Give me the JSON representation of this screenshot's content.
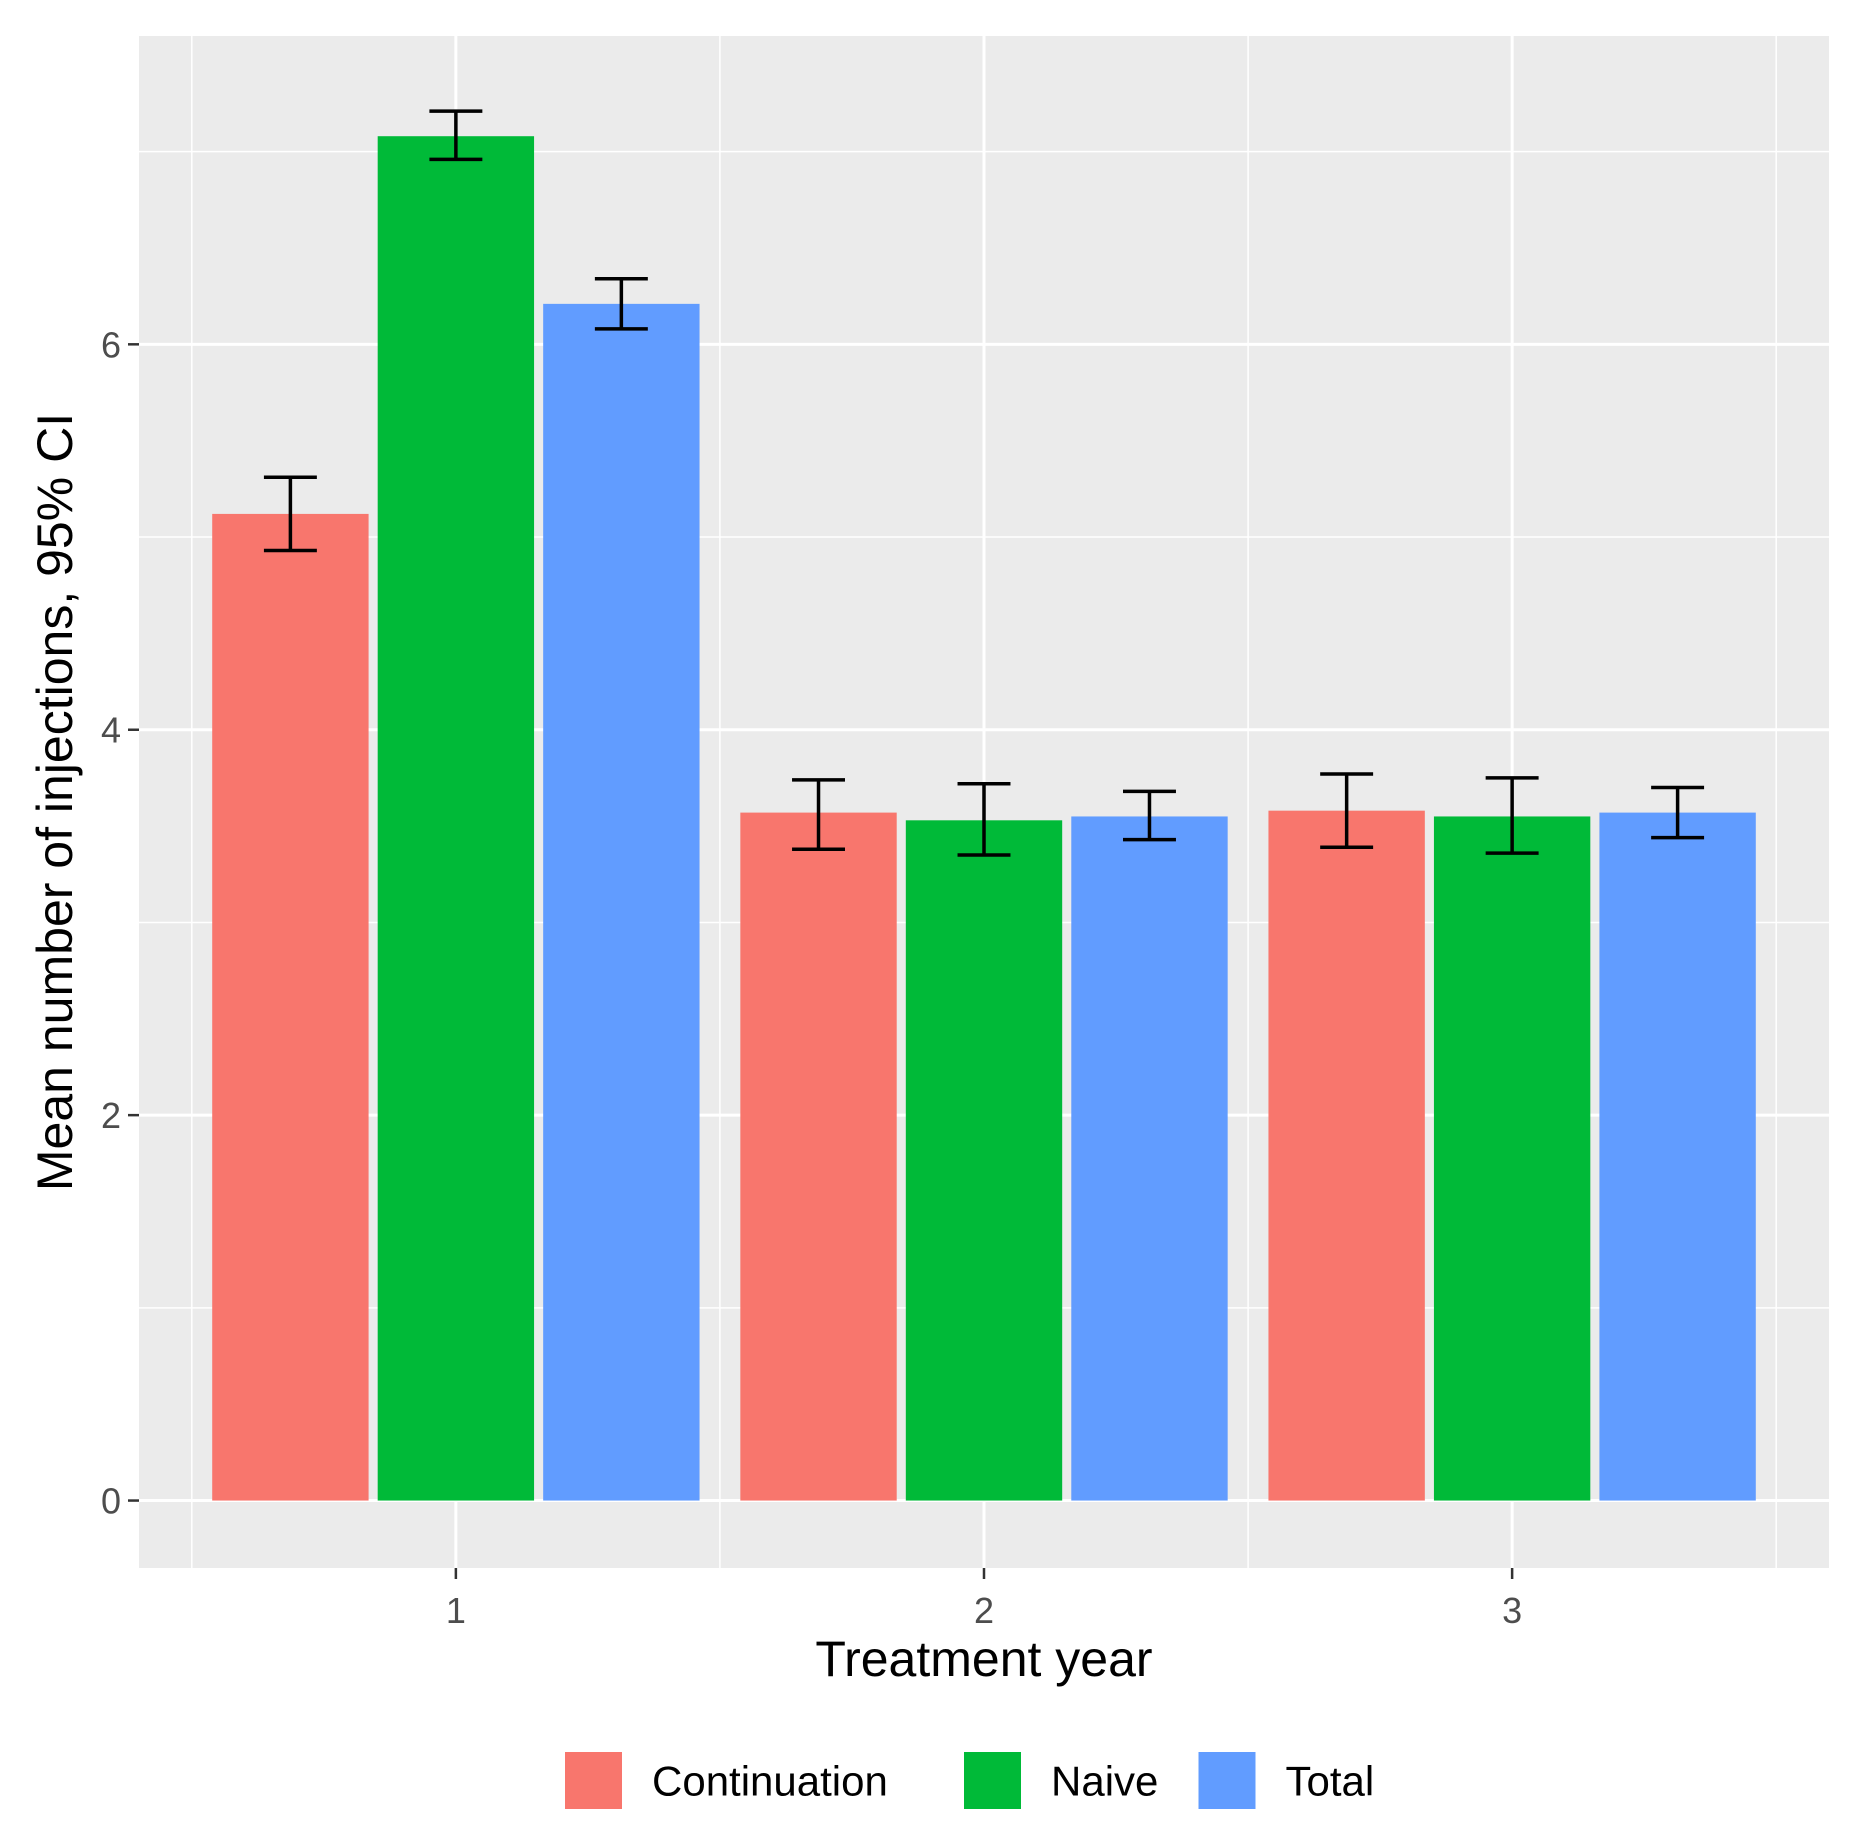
{
  "chart_data": {
    "type": "bar",
    "title": "",
    "xlabel": "Treatment year",
    "ylabel": "Mean number of injections, 95% CI",
    "categories": [
      "1",
      "2",
      "3"
    ],
    "ylim": [
      -0.35,
      7.6
    ],
    "yticks": [
      0,
      2,
      4,
      6
    ],
    "ytick_labels": [
      "0",
      "2",
      "4",
      "6"
    ],
    "grid": true,
    "legend_position": "bottom",
    "series": [
      {
        "name": "Continuation",
        "color": "#F8766D",
        "values": [
          5.12,
          3.57,
          3.58
        ],
        "ci_low": [
          4.93,
          3.38,
          3.39
        ],
        "ci_high": [
          5.31,
          3.74,
          3.77
        ]
      },
      {
        "name": "Naive",
        "color": "#00BA38",
        "values": [
          7.08,
          3.53,
          3.55
        ],
        "ci_low": [
          6.96,
          3.35,
          3.36
        ],
        "ci_high": [
          7.21,
          3.72,
          3.75
        ]
      },
      {
        "name": "Total",
        "color": "#619CFF",
        "values": [
          6.21,
          3.55,
          3.57
        ],
        "ci_low": [
          6.08,
          3.43,
          3.44
        ],
        "ci_high": [
          6.34,
          3.68,
          3.7
        ]
      }
    ]
  }
}
